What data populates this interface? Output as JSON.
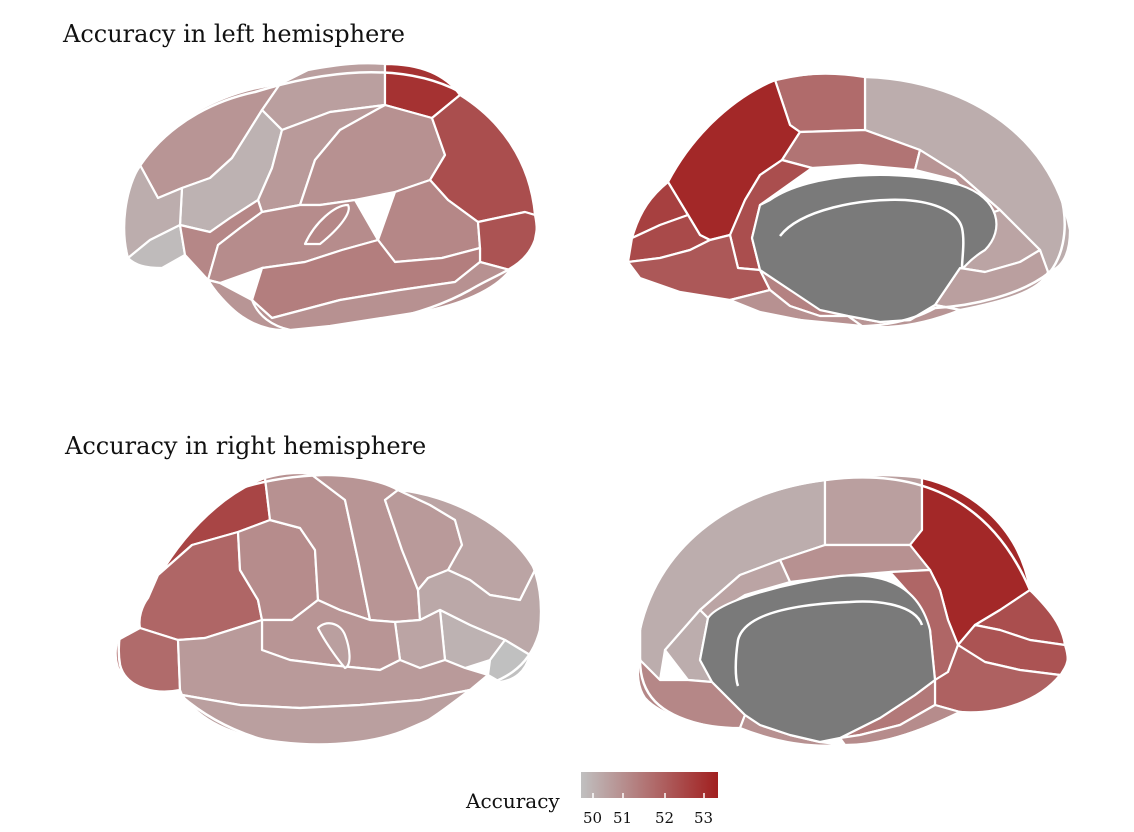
{
  "titles": {
    "left": "Accuracy in left hemisphere",
    "right": "Accuracy in right hemisphere"
  },
  "colorbar": {
    "label": "Accuracy",
    "ticks": [
      "50",
      "51",
      "52",
      "53"
    ],
    "range": [
      50,
      53.4
    ],
    "low_color": "#c0c0c0",
    "high_color": "#a11f1f",
    "medial_wall_color": "#7a7a7a"
  },
  "views": {
    "left_lateral": {
      "orbitofrontal": 50.1,
      "pars_triangularis": 50.4,
      "rostral_middle_frontal": 50.3,
      "caudal_middle_frontal": 50.7,
      "superior_frontal": 50.9,
      "precentral": 50.8,
      "postcentral": 51.0,
      "superior_parietal": 53.0,
      "supramarginal": 51.2,
      "inferior_parietal": 52.4,
      "lateral_occipital": 52.3,
      "superior_temporal": 51.4,
      "middle_temporal": 51.0,
      "inferior_temporal": 50.9,
      "insula": 51.1,
      "transverse_temporal": 51.2,
      "pars_opercularis": 51.2
    },
    "left_medial": {
      "precuneus": 53.2,
      "paracentral": 51.8,
      "superior_frontal_medial": 50.4,
      "posterior_cingulate": 51.6,
      "isthmus_cingulate": 52.4,
      "caudal_anterior_cingulate": 50.9,
      "rostral_anterior_cingulate": 50.6,
      "medial_orbitofrontal": 50.7,
      "cuneus": 52.7,
      "pericalcarine": 52.5,
      "lingual": 52.2,
      "parahippocampal": 51.3,
      "fusiform": 51.0,
      "entorhinal": 50.9,
      "medial_wall": null
    },
    "right_lateral": {
      "superior_parietal": 52.6,
      "inferior_parietal": 51.9,
      "lateral_occipital": 51.8,
      "supramarginal": 51.1,
      "postcentral": 51.0,
      "precentral": 50.9,
      "caudal_middle_frontal": 50.8,
      "superior_frontal": 50.6,
      "rostral_middle_frontal": 50.5,
      "pars_triangularis": 50.3,
      "orbitofrontal": 50.0,
      "superior_temporal": 50.8,
      "middle_temporal": 50.7,
      "inferior_temporal": 50.7,
      "insula": 50.9,
      "pars_opercularis": 50.6
    },
    "right_medial": {
      "precuneus": 53.2,
      "paracentral": 50.7,
      "superior_frontal_medial": 50.4,
      "posterior_cingulate": 51.0,
      "isthmus_cingulate": 51.9,
      "caudal_anterior_cingulate": 50.6,
      "rostral_anterior_cingulate": 50.4,
      "medial_orbitofrontal": 51.2,
      "cuneus": 52.4,
      "pericalcarine": 52.3,
      "lingual": 52.0,
      "parahippocampal": 51.5,
      "fusiform": 51.1,
      "entorhinal": 51.0,
      "medial_wall": null
    }
  }
}
